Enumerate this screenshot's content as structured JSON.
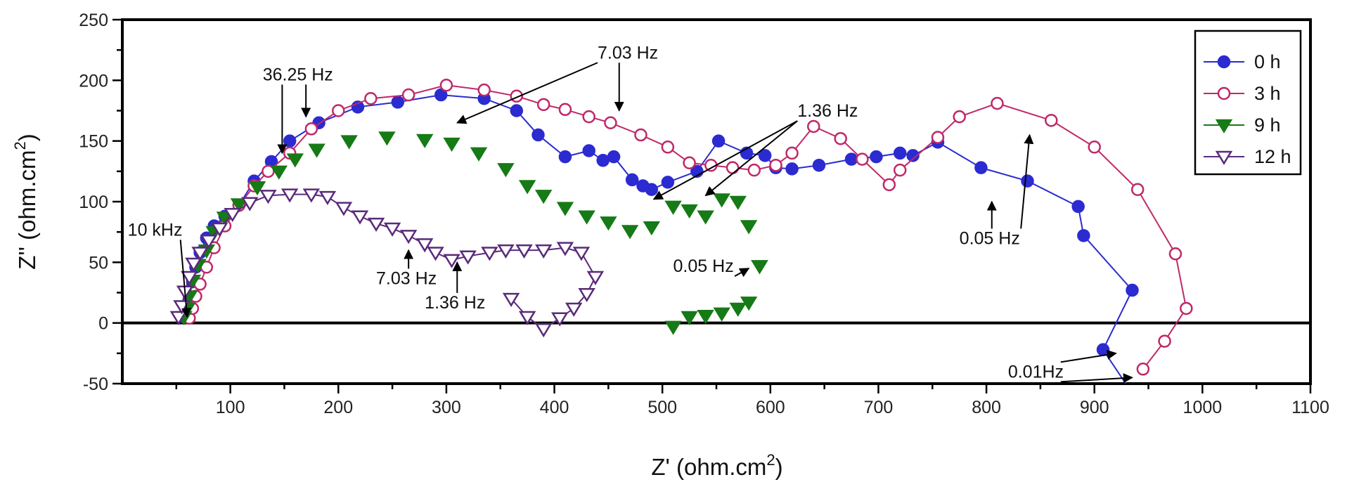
{
  "chart_data": {
    "type": "scatter",
    "title": "",
    "xlabel": "Z' (ohm.cm",
    "xlabel_sup": "2",
    "xlabel_close": ")",
    "ylabel": "Z'' (ohm.cm",
    "ylabel_sup": "2",
    "ylabel_close": ")",
    "xlim": [
      0,
      1100
    ],
    "ylim": [
      -50,
      250
    ],
    "xticks": [
      "100",
      "200",
      "300",
      "400",
      "500",
      "600",
      "700",
      "800",
      "900",
      "1000",
      "1100"
    ],
    "xtick_values": [
      100,
      200,
      300,
      400,
      500,
      600,
      700,
      800,
      900,
      1000,
      1100
    ],
    "yticks": [
      "-50",
      "0",
      "50",
      "100",
      "150",
      "200",
      "250"
    ],
    "ytick_values": [
      -50,
      0,
      50,
      100,
      150,
      200,
      250
    ],
    "grid": false,
    "legend_position": "top-right",
    "zero_line": true,
    "series": [
      {
        "name": "0 h",
        "color": "#2b2bd1",
        "marker": "circle-filled",
        "line": true,
        "x": [
          57,
          60,
          62,
          65,
          68,
          72,
          78,
          85,
          95,
          108,
          122,
          138,
          155,
          182,
          218,
          255,
          295,
          335,
          365,
          385,
          410,
          432,
          445,
          455,
          472,
          482,
          490,
          505,
          532,
          552,
          578,
          595,
          605,
          620,
          645,
          675,
          698,
          720,
          732,
          755,
          795,
          838,
          885,
          890,
          935,
          908,
          935
        ],
        "y": [
          5,
          12,
          22,
          34,
          46,
          58,
          70,
          80,
          88,
          97,
          117,
          133,
          150,
          165,
          178,
          182,
          188,
          185,
          175,
          155,
          137,
          142,
          134,
          137,
          118,
          113,
          110,
          116,
          125,
          150,
          140,
          138,
          128,
          127,
          130,
          135,
          137,
          140,
          138,
          149,
          128,
          117,
          96,
          72,
          27,
          -22,
          -58
        ]
      },
      {
        "name": "3 h",
        "color": "#c02868",
        "marker": "circle-open",
        "line": true,
        "x": [
          62,
          65,
          68,
          72,
          78,
          85,
          95,
          108,
          122,
          135,
          155,
          175,
          200,
          230,
          265,
          300,
          335,
          365,
          390,
          410,
          432,
          452,
          480,
          505,
          525,
          545,
          565,
          585,
          605,
          620,
          640,
          665,
          685,
          710,
          720,
          755,
          775,
          810,
          860,
          900,
          940,
          975,
          985,
          965,
          945
        ],
        "y": [
          4,
          12,
          22,
          32,
          46,
          62,
          80,
          97,
          113,
          125,
          140,
          160,
          175,
          185,
          188,
          196,
          192,
          187,
          180,
          176,
          170,
          165,
          155,
          145,
          132,
          130,
          128,
          126,
          130,
          140,
          162,
          152,
          135,
          114,
          126,
          153,
          170,
          181,
          167,
          145,
          110,
          57,
          12,
          -15,
          -38
        ]
      },
      {
        "name": "9 h",
        "color": "#167a16",
        "marker": "triangle-down-filled",
        "line": false,
        "x": [
          57,
          60,
          62,
          65,
          70,
          78,
          85,
          95,
          108,
          125,
          145,
          160,
          180,
          210,
          245,
          280,
          305,
          330,
          355,
          375,
          390,
          410,
          430,
          450,
          470,
          490,
          510,
          525,
          540,
          555,
          570,
          580,
          590,
          590,
          580,
          570,
          555,
          540,
          525,
          510
        ],
        "y": [
          5,
          12,
          22,
          35,
          48,
          60,
          75,
          87,
          98,
          112,
          125,
          135,
          143,
          150,
          153,
          151,
          148,
          140,
          127,
          113,
          105,
          95,
          88,
          83,
          76,
          79,
          96,
          93,
          88,
          102,
          100,
          80,
          47,
          47,
          17,
          12,
          8,
          6,
          5,
          -3
        ]
      },
      {
        "name": "12 h",
        "color": "#5a2a7a",
        "marker": "triangle-down-open",
        "line": true,
        "x": [
          52,
          55,
          58,
          62,
          66,
          72,
          80,
          90,
          102,
          118,
          135,
          155,
          175,
          190,
          205,
          220,
          235,
          250,
          265,
          280,
          290,
          305,
          320,
          340,
          355,
          372,
          390,
          410,
          425,
          438,
          430,
          418,
          405,
          390,
          375,
          360
        ],
        "y": [
          5,
          14,
          26,
          38,
          49,
          58,
          68,
          78,
          90,
          99,
          105,
          106,
          106,
          104,
          95,
          88,
          82,
          78,
          72,
          65,
          58,
          52,
          55,
          58,
          60,
          60,
          60,
          62,
          58,
          38,
          24,
          12,
          4,
          -5,
          5,
          20
        ]
      }
    ],
    "annotations": [
      {
        "text": "36.25 Hz",
        "x": 130,
        "y": 200,
        "pointers": [
          [
            148,
            140
          ],
          [
            170,
            170
          ]
        ]
      },
      {
        "text": "7.03 Hz",
        "x": 440,
        "y": 218,
        "pointers": [
          [
            310,
            165
          ],
          [
            460,
            175
          ]
        ]
      },
      {
        "text": "1.36 Hz",
        "x": 625,
        "y": 170,
        "pointers": [
          [
            492,
            102
          ],
          [
            540,
            105
          ]
        ]
      },
      {
        "text": "10 kHz",
        "x": 5,
        "y": 72,
        "pointers": [
          [
            60,
            5
          ]
        ]
      },
      {
        "text": "7.03 Hz",
        "x": 235,
        "y": 32,
        "pointers": [
          [
            265,
            60
          ]
        ]
      },
      {
        "text": "1.36 Hz",
        "x": 280,
        "y": 12,
        "pointers": [
          [
            310,
            50
          ]
        ]
      },
      {
        "text": "0.05 Hz",
        "x": 510,
        "y": 42,
        "pointers": [
          [
            580,
            45
          ]
        ]
      },
      {
        "text": "0.05 Hz",
        "x": 775,
        "y": 65,
        "pointers": [
          [
            840,
            155
          ],
          [
            805,
            100
          ]
        ]
      },
      {
        "text": "0.01Hz",
        "x": 820,
        "y": -45,
        "pointers": [
          [
            920,
            -25
          ],
          [
            935,
            -45
          ]
        ]
      }
    ]
  }
}
